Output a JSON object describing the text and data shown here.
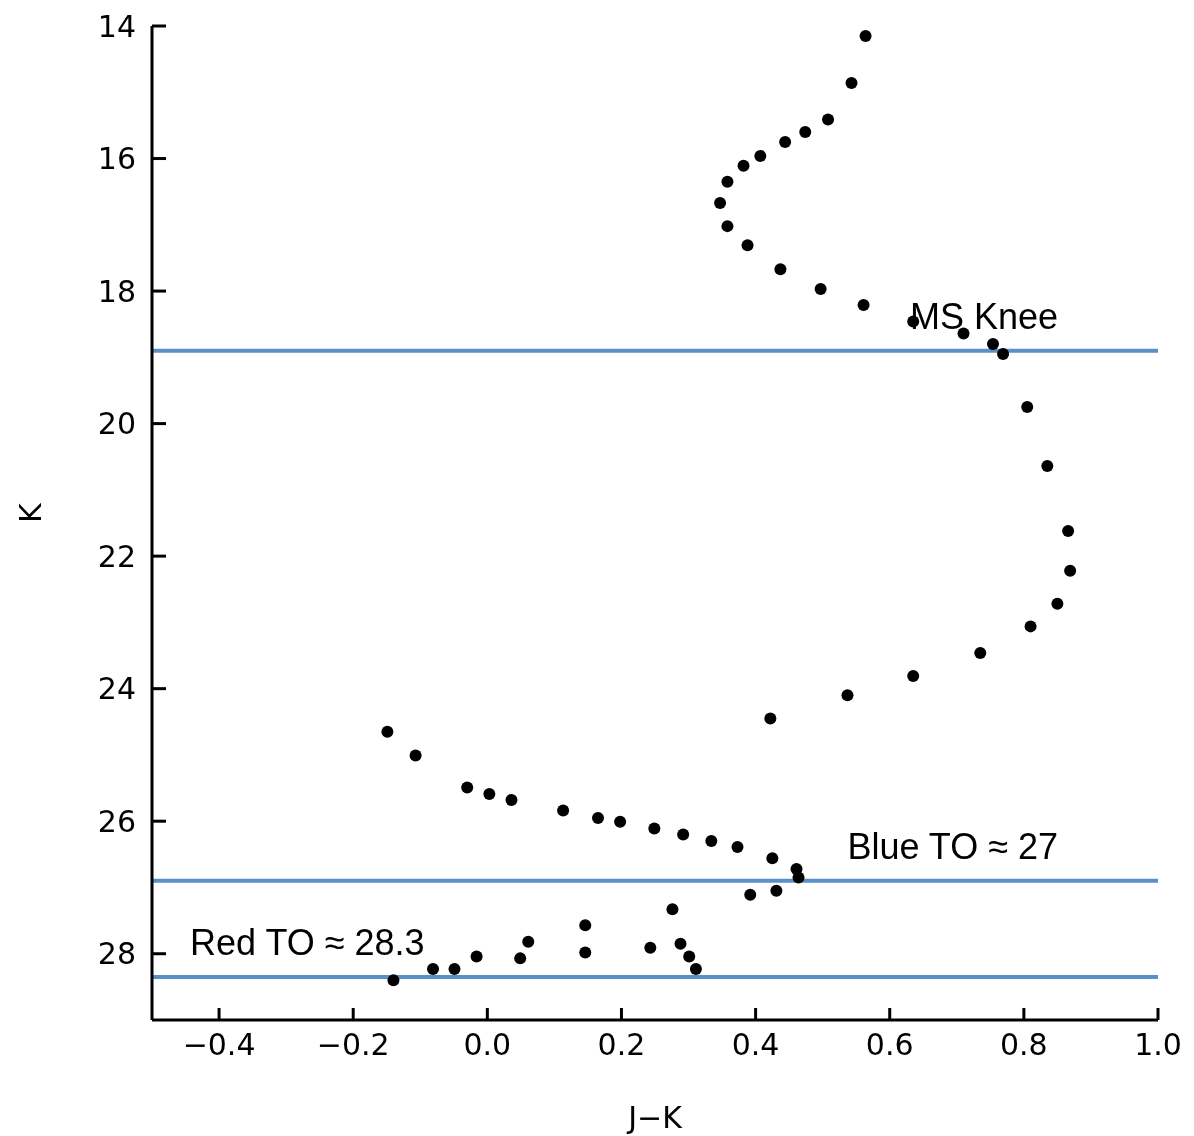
{
  "chart_data": {
    "type": "scatter",
    "xlabel": "J−K",
    "ylabel": "K",
    "xlim": [
      -0.5,
      1.0
    ],
    "xticks": [
      {
        "value": -0.4,
        "label": "−0.4"
      },
      {
        "value": -0.2,
        "label": "−0.2"
      },
      {
        "value": 0,
        "label": "0.0"
      },
      {
        "value": 0.2,
        "label": "0.2"
      },
      {
        "value": 0.4,
        "label": "0.4"
      },
      {
        "value": 0.6,
        "label": "0.6"
      },
      {
        "value": 0.8,
        "label": "0.8"
      },
      {
        "value": 1.0,
        "label": "1.0"
      }
    ],
    "ylim": [
      29,
      14
    ],
    "yticks": [
      14,
      16,
      18,
      20,
      22,
      24,
      26,
      28
    ],
    "marker": "circle",
    "grid": false,
    "legend": false,
    "series": [
      {
        "color": "#000000",
        "x": [
          0.564,
          0.543,
          0.508,
          0.474,
          0.444,
          0.407,
          0.382,
          0.358,
          0.347,
          0.358,
          0.388,
          0.437,
          0.497,
          0.561,
          0.635,
          0.71,
          0.754,
          0.769,
          0.805,
          0.835,
          0.866,
          0.869,
          0.85,
          0.81,
          0.735,
          0.635,
          0.537,
          0.422,
          -0.149,
          -0.107,
          -0.03,
          0.003,
          0.036,
          0.113,
          0.165,
          0.198,
          0.249,
          0.292,
          0.334,
          0.373,
          0.425,
          0.461,
          0.464,
          0.431,
          0.392,
          0.276,
          0.146,
          0.061,
          -0.016,
          -0.081,
          -0.14,
          -0.049,
          0.049,
          0.146,
          0.243,
          0.288,
          0.301,
          0.311
        ],
        "values": [
          14.15,
          14.86,
          15.41,
          15.6,
          15.75,
          15.96,
          16.11,
          16.35,
          16.67,
          17.02,
          17.31,
          17.67,
          17.97,
          18.21,
          18.46,
          18.64,
          18.8,
          18.95,
          19.75,
          20.64,
          21.62,
          22.22,
          22.72,
          23.06,
          23.46,
          23.81,
          24.1,
          24.45,
          24.65,
          25.01,
          25.49,
          25.59,
          25.68,
          25.84,
          25.95,
          26.01,
          26.11,
          26.2,
          26.3,
          26.39,
          26.56,
          26.72,
          26.85,
          27.05,
          27.11,
          27.33,
          27.57,
          27.82,
          28.04,
          28.23,
          28.4,
          28.23,
          28.07,
          27.98,
          27.91,
          27.85,
          28.04,
          28.23
        ]
      }
    ],
    "ref_lines": [
      {
        "axis": "y",
        "value": 18.9,
        "label": "MS Knee",
        "color": "#5b8fc9"
      },
      {
        "axis": "y",
        "value": 26.9,
        "label": "Blue TO ≈ 27",
        "color": "#5b8fc9"
      },
      {
        "axis": "y",
        "value": 28.35,
        "label": "Red TO ≈ 28.3",
        "color": "#5b8fc9"
      }
    ]
  }
}
